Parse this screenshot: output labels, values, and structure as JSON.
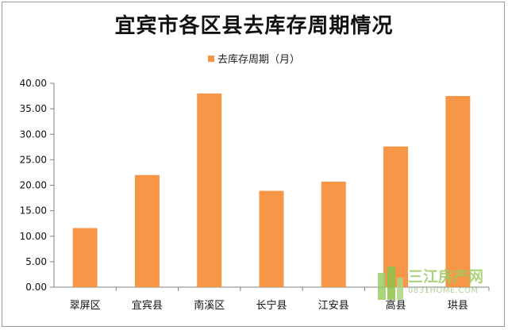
{
  "chart_data": {
    "type": "bar",
    "title": "宜宾市各区县去库存周期情况",
    "series": [
      {
        "name": "去库存周期（月）",
        "color": "#f79646",
        "values": [
          11.6,
          22.0,
          38.0,
          18.9,
          20.7,
          27.6,
          37.5
        ]
      }
    ],
    "categories": [
      "翠屏区",
      "宜宾县",
      "南溪区",
      "长宁县",
      "江安县",
      "高县",
      "珙县"
    ],
    "ylim": [
      0,
      40
    ],
    "yticks": [
      "0.00",
      "5.00",
      "10.00",
      "15.00",
      "20.00",
      "25.00",
      "30.00",
      "35.00",
      "40.00"
    ],
    "legend_position": "top",
    "grid": false
  },
  "watermark": {
    "text": "三江房产网",
    "url": "0831HOME.COM"
  }
}
